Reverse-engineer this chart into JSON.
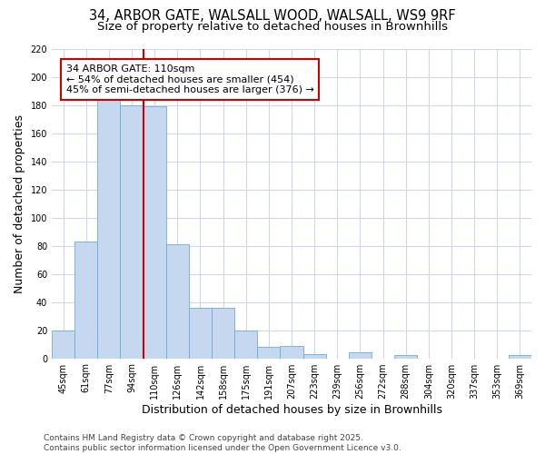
{
  "title_line1": "34, ARBOR GATE, WALSALL WOOD, WALSALL, WS9 9RF",
  "title_line2": "Size of property relative to detached houses in Brownhills",
  "xlabel": "Distribution of detached houses by size in Brownhills",
  "ylabel": "Number of detached properties",
  "categories": [
    "45sqm",
    "61sqm",
    "77sqm",
    "94sqm",
    "110sqm",
    "126sqm",
    "142sqm",
    "158sqm",
    "175sqm",
    "191sqm",
    "207sqm",
    "223sqm",
    "239sqm",
    "256sqm",
    "272sqm",
    "288sqm",
    "304sqm",
    "320sqm",
    "337sqm",
    "353sqm",
    "369sqm"
  ],
  "values": [
    20,
    83,
    184,
    180,
    179,
    81,
    36,
    36,
    20,
    8,
    9,
    3,
    0,
    4,
    0,
    2,
    0,
    0,
    0,
    0,
    2
  ],
  "bar_color": "#c5d8f0",
  "bar_edge_color": "#6baed6",
  "vline_x_index": 4,
  "vline_color": "#cc0000",
  "annotation_text": "34 ARBOR GATE: 110sqm\n← 54% of detached houses are smaller (454)\n45% of semi-detached houses are larger (376) →",
  "annotation_box_color": "#ffffff",
  "annotation_box_edge": "#cc0000",
  "ylim": [
    0,
    220
  ],
  "yticks": [
    0,
    20,
    40,
    60,
    80,
    100,
    120,
    140,
    160,
    180,
    200,
    220
  ],
  "footer_line1": "Contains HM Land Registry data © Crown copyright and database right 2025.",
  "footer_line2": "Contains public sector information licensed under the Open Government Licence v3.0.",
  "background_color": "#ffffff",
  "plot_bg_color": "#ffffff",
  "grid_color": "#d0d8e8",
  "title_fontsize": 10.5,
  "subtitle_fontsize": 9.5,
  "label_fontsize": 9,
  "tick_fontsize": 7,
  "footer_fontsize": 6.5,
  "ann_fontsize": 8
}
